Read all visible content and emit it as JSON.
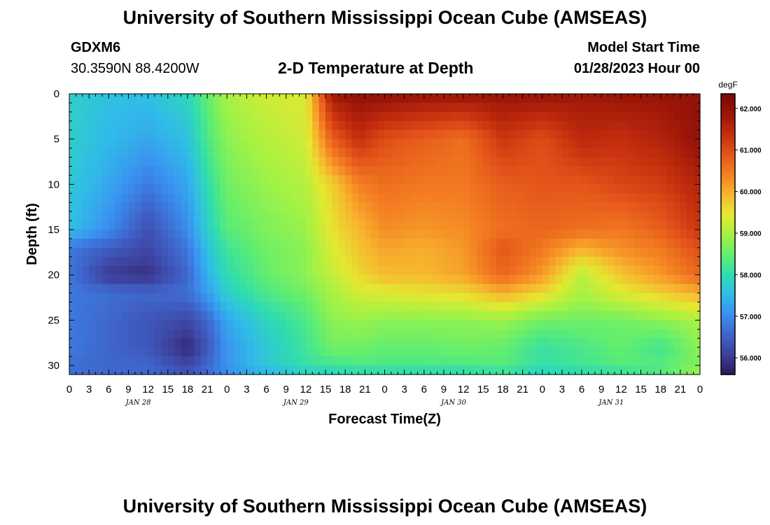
{
  "header": {
    "title": "University of Southern Mississippi Ocean Cube (AMSEAS)",
    "station_id": "GDXM6",
    "station_coords": "30.3590N  88.4200W",
    "plot_title": "2-D Temperature at Depth",
    "model_start_label": "Model Start Time",
    "model_start_value": "01/28/2023 Hour 00"
  },
  "footer": {
    "title": "University of Southern Mississippi Ocean Cube (AMSEAS)"
  },
  "chart_data": {
    "type": "heatmap",
    "xlabel": "Forecast Time(Z)",
    "ylabel": "Depth (ft)",
    "x_tick_labels": [
      "0",
      "3",
      "6",
      "9",
      "12",
      "15",
      "18",
      "21",
      "0",
      "3",
      "6",
      "9",
      "12",
      "15",
      "18",
      "21",
      "0",
      "3",
      "6",
      "9",
      "12",
      "15",
      "18",
      "21",
      "0",
      "3",
      "6",
      "9",
      "12",
      "15",
      "18",
      "21",
      "0"
    ],
    "x_hours_range": [
      0,
      96
    ],
    "day_labels": [
      {
        "label": "JAN 28",
        "center_hour": 10.5
      },
      {
        "label": "JAN 29",
        "center_hour": 34.5
      },
      {
        "label": "JAN 30",
        "center_hour": 58.5
      },
      {
        "label": "JAN 31",
        "center_hour": 82.5
      }
    ],
    "y_tick_labels": [
      "0",
      "5",
      "10",
      "15",
      "20",
      "25",
      "30"
    ],
    "y_tick_values": [
      0,
      5,
      10,
      15,
      20,
      25,
      30
    ],
    "ylim": [
      0,
      31
    ],
    "y_inverted": true,
    "colorbar": {
      "unit": "degF",
      "min": 55.6,
      "max": 62.35,
      "tick_values": [
        56,
        57,
        58,
        59,
        60,
        61,
        62
      ],
      "tick_labels": [
        "56.000",
        "57.000",
        "58.000",
        "59.000",
        "60.000",
        "61.000",
        "62.000"
      ],
      "colors": [
        "#2a1a55",
        "#3d3f9a",
        "#3f63c9",
        "#3a90f0",
        "#30bce8",
        "#2fdcb0",
        "#62ee6e",
        "#a5f244",
        "#e4e830",
        "#f7b52e",
        "#f47f22",
        "#e4551a",
        "#c52f0e",
        "#9b1508",
        "#7a0a04"
      ]
    },
    "field_hours": [
      0,
      6,
      12,
      18,
      21,
      24,
      30,
      36,
      40,
      44,
      48,
      54,
      60,
      66,
      72,
      78,
      84,
      90,
      96
    ],
    "field_depths": [
      0,
      5,
      10,
      15,
      17,
      20,
      22,
      25,
      28,
      30,
      31
    ],
    "temperature_degF": [
      [
        57.8,
        57.6,
        57.6,
        57.9,
        58.5,
        59.0,
        59.3,
        59.4,
        61.8,
        62.0,
        62.0,
        61.9,
        61.9,
        61.9,
        61.9,
        61.8,
        61.9,
        61.9,
        62.0
      ],
      [
        57.8,
        57.5,
        57.3,
        57.6,
        58.3,
        58.8,
        59.1,
        59.3,
        60.8,
        61.4,
        61.0,
        60.8,
        60.6,
        61.3,
        61.0,
        61.5,
        61.4,
        61.6,
        62.0
      ],
      [
        57.7,
        57.3,
        56.8,
        57.3,
        58.0,
        58.6,
        58.9,
        59.1,
        59.7,
        60.4,
        60.6,
        60.5,
        60.5,
        60.8,
        60.9,
        60.9,
        61.1,
        61.2,
        61.6
      ],
      [
        57.6,
        57.0,
        56.3,
        57.0,
        57.8,
        58.4,
        58.7,
        58.9,
        59.5,
        59.9,
        60.3,
        60.2,
        60.3,
        60.6,
        60.7,
        60.6,
        60.5,
        60.8,
        61.3
      ],
      [
        56.8,
        56.5,
        56.2,
        56.8,
        57.6,
        58.2,
        58.6,
        58.8,
        59.4,
        59.8,
        60.1,
        60.0,
        60.2,
        60.9,
        60.5,
        60.0,
        60.3,
        60.5,
        61.0
      ],
      [
        56.8,
        56.0,
        55.9,
        56.6,
        57.4,
        58.0,
        58.5,
        58.8,
        59.2,
        59.6,
        59.9,
        59.9,
        60.1,
        60.7,
        60.2,
        59.1,
        59.8,
        60.2,
        60.7
      ],
      [
        56.8,
        56.7,
        56.6,
        56.7,
        57.2,
        57.8,
        58.3,
        58.6,
        59.0,
        59.3,
        59.4,
        59.5,
        59.6,
        60.0,
        59.6,
        59.0,
        59.4,
        59.7,
        60.0
      ],
      [
        56.8,
        56.6,
        56.4,
        56.2,
        56.6,
        57.3,
        57.9,
        58.3,
        58.8,
        58.9,
        58.8,
        58.8,
        58.8,
        58.9,
        58.6,
        58.6,
        58.6,
        58.8,
        59.0
      ],
      [
        56.8,
        56.6,
        56.4,
        55.8,
        56.4,
        57.1,
        57.7,
        58.2,
        58.6,
        58.6,
        58.5,
        58.5,
        58.6,
        58.5,
        58.1,
        58.3,
        58.5,
        58.2,
        58.8
      ],
      [
        56.7,
        56.6,
        56.6,
        56.2,
        56.6,
        57.1,
        57.7,
        58.1,
        58.2,
        58.3,
        58.3,
        58.3,
        58.3,
        58.4,
        58.1,
        58.2,
        58.4,
        58.4,
        58.7
      ],
      [
        56.7,
        56.6,
        56.6,
        56.4,
        56.7,
        57.0,
        57.4,
        57.7,
        57.8,
        57.9,
        57.9,
        57.9,
        57.9,
        58.0,
        57.8,
        57.9,
        58.0,
        58.3,
        59.0
      ]
    ]
  }
}
